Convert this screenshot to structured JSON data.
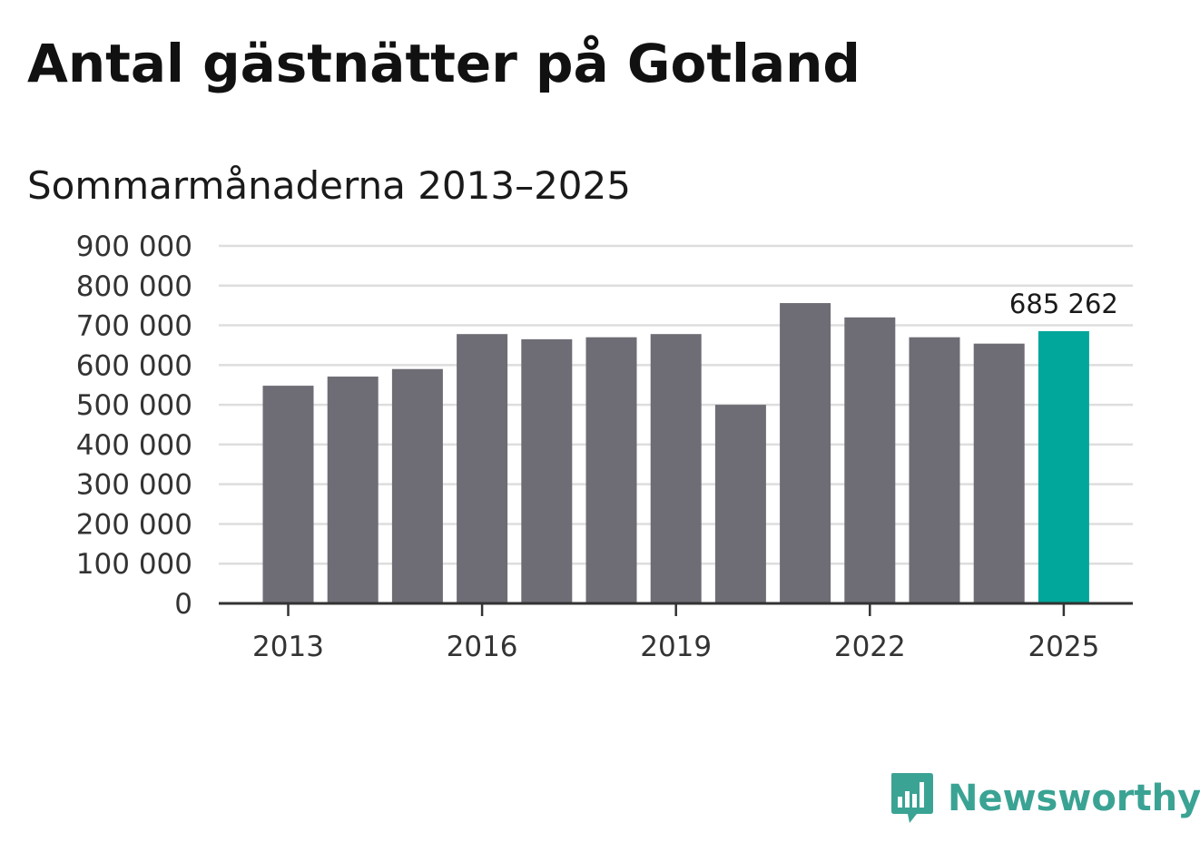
{
  "title": "Antal gästnätter på Gotland",
  "subtitle": "Sommarmånaderna 2013–2025",
  "brand": {
    "name": "Newsworthy",
    "icon": "newsworthy-logo-icon",
    "color": "#3aa394"
  },
  "colors": {
    "bar": "#6e6d75",
    "highlight": "#00a79a",
    "grid": "#dddddd",
    "axis": "#333333"
  },
  "chart_data": {
    "type": "bar",
    "categories": [
      "2013",
      "2014",
      "2015",
      "2016",
      "2017",
      "2018",
      "2019",
      "2020",
      "2021",
      "2022",
      "2023",
      "2024",
      "2025"
    ],
    "values": [
      548000,
      571000,
      590000,
      678000,
      665000,
      670000,
      678000,
      500000,
      756000,
      720000,
      670000,
      654000,
      685262
    ],
    "highlight_index": 12,
    "data_labels": [
      {
        "index": 12,
        "text": "685 262"
      }
    ],
    "x_tick_labels": [
      "2013",
      "2016",
      "2019",
      "2022",
      "2025"
    ],
    "x_tick_indices": [
      0,
      3,
      6,
      9,
      12
    ],
    "y_ticks": [
      0,
      100000,
      200000,
      300000,
      400000,
      500000,
      600000,
      700000,
      800000,
      900000
    ],
    "y_tick_labels": [
      "0",
      "100 000",
      "200 000",
      "300 000",
      "400 000",
      "500 000",
      "600 000",
      "700 000",
      "800 000",
      "900 000"
    ],
    "ylim": [
      0,
      900000
    ],
    "grid": true,
    "title": "Antal gästnätter på Gotland",
    "subtitle": "Sommarmånaderna 2013–2025"
  }
}
